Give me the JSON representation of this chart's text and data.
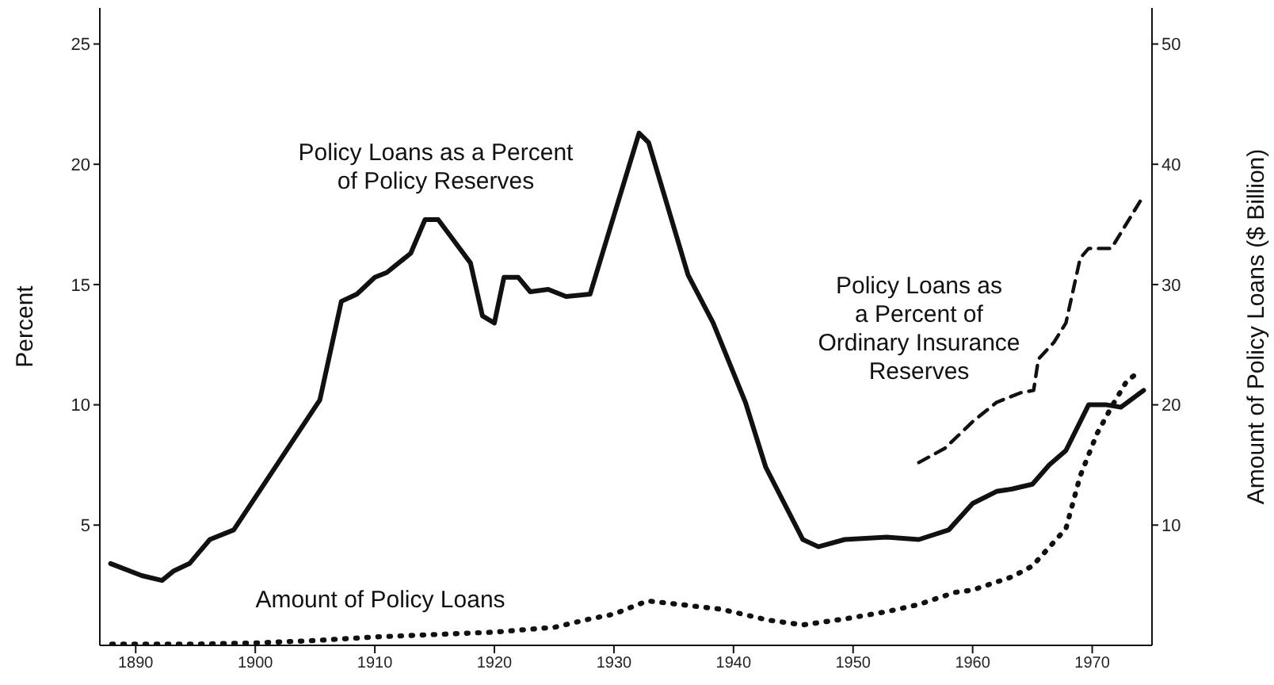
{
  "chart_data": {
    "type": "line",
    "ylabel": "Percent",
    "y2label": "Amount of Policy Loans ($ Billion)",
    "xlim": [
      1887,
      1975
    ],
    "xticks": [
      1890,
      1900,
      1910,
      1920,
      1930,
      1940,
      1950,
      1960,
      1970
    ],
    "ylim": [
      0,
      26.5
    ],
    "yticks": [
      5,
      10,
      15,
      20,
      25
    ],
    "y2lim": [
      0,
      53
    ],
    "y2ticks": [
      10,
      20,
      30,
      40,
      50
    ],
    "grid": false,
    "legend": false,
    "marker": "none",
    "series": [
      {
        "name": "Policy Loans as a Percent\nof Policy Reserves",
        "color": "#111111",
        "line_style": "solid",
        "x": [
          1887.9,
          1890.5,
          1892.2,
          1893.2,
          1894.5,
          1896.2,
          1898.2,
          1905.4,
          1907.2,
          1908.5,
          1910,
          1911,
          1913,
          1914.2,
          1915.3,
          1916.5,
          1918,
          1919,
          1920,
          1920.8,
          1922,
          1923,
          1924.5,
          1926,
          1928,
          1932.1,
          1932.9,
          1936.2,
          1938.3,
          1941,
          1942.7,
          1945.8,
          1947.1,
          1949.3,
          1952.8,
          1955.5,
          1958,
          1960,
          1962,
          1963.3,
          1965,
          1966.4,
          1967.8,
          1969.7,
          1971.2,
          1972.4,
          1974.3
        ],
        "values": [
          3.4,
          2.9,
          2.7,
          3.1,
          3.4,
          4.4,
          4.8,
          10.2,
          14.3,
          14.6,
          15.3,
          15.5,
          16.3,
          17.7,
          17.7,
          16.9,
          15.9,
          13.7,
          13.4,
          15.3,
          15.3,
          14.7,
          14.8,
          14.5,
          14.6,
          21.3,
          20.9,
          15.4,
          13.4,
          10.1,
          7.4,
          4.4,
          4.1,
          4.4,
          4.5,
          4.4,
          4.8,
          5.9,
          6.4,
          6.5,
          6.7,
          7.5,
          8.1,
          10,
          10,
          9.9,
          10.6
        ]
      },
      {
        "name": "Policy Loans as\na Percent of\nOrdinary Insurance\nReserves",
        "color": "#111111",
        "line_style": "dashed",
        "x": [
          1955.5,
          1957.7,
          1960,
          1962,
          1964,
          1965.1,
          1965.5,
          1966.8,
          1967.8,
          1969,
          1969.7,
          1971.6,
          1974.3
        ],
        "values": [
          7.6,
          8.2,
          9.3,
          10.1,
          10.5,
          10.6,
          11.9,
          12.6,
          13.4,
          16.1,
          16.5,
          16.5,
          18.7
        ]
      },
      {
        "name": "Amount of Policy Loans",
        "color": "#111111",
        "line_style": "dotted",
        "axis": "y2",
        "x": [
          1888,
          1895,
          1900,
          1905,
          1910,
          1915,
          1920,
          1925,
          1928,
          1930,
          1932.8,
          1935.5,
          1939,
          1942.9,
          1945.8,
          1949.3,
          1952.8,
          1955.5,
          1958.5,
          1960,
          1963.3,
          1965,
          1967.8,
          1969,
          1970.4,
          1971.6,
          1972.9,
          1973.6
        ],
        "values": [
          0.1,
          0.1,
          0.2,
          0.4,
          0.7,
          0.9,
          1.1,
          1.5,
          2.2,
          2.6,
          3.7,
          3.4,
          3,
          2.1,
          1.7,
          2.2,
          2.8,
          3.4,
          4.4,
          4.6,
          5.7,
          6.6,
          9.7,
          14.1,
          17.6,
          19.8,
          22,
          22.5
        ]
      }
    ]
  }
}
